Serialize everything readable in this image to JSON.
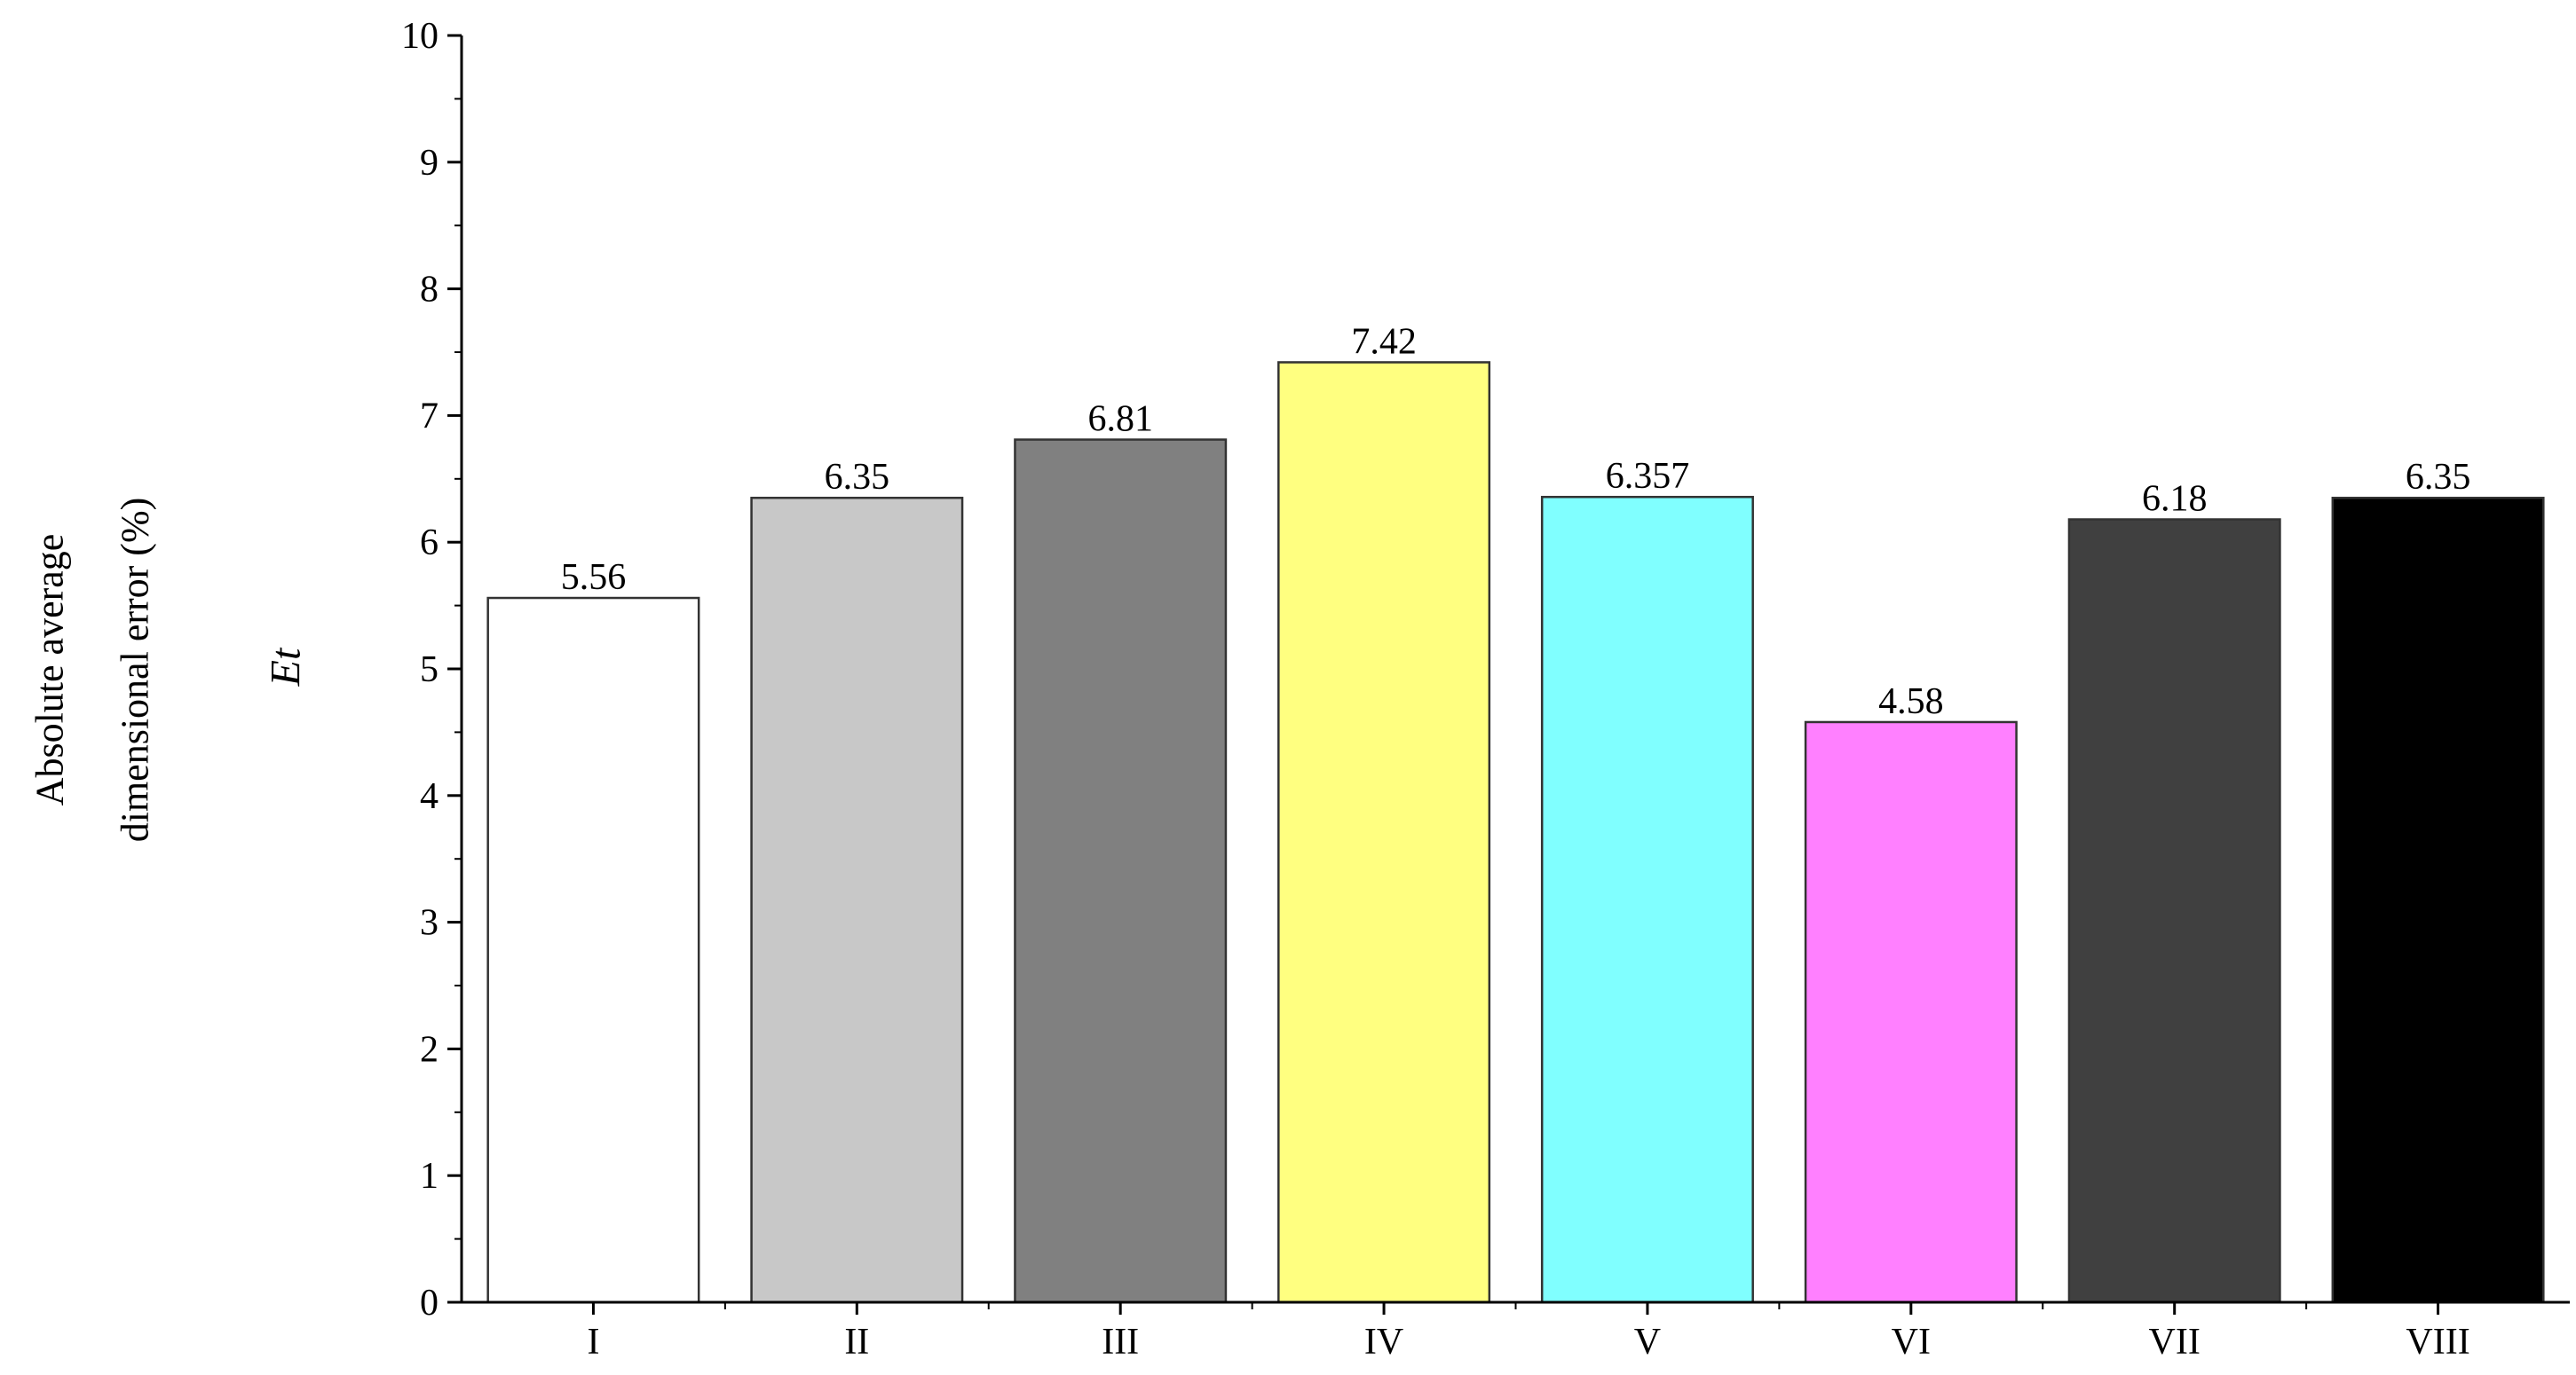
{
  "chart_data": {
    "type": "bar",
    "categories": [
      "I",
      "II",
      "III",
      "IV",
      "V",
      "VI",
      "VII",
      "VIII"
    ],
    "values": [
      5.56,
      6.35,
      6.81,
      7.42,
      6.357,
      4.58,
      6.18,
      6.35
    ],
    "value_labels": [
      "5.56",
      "6.35",
      "6.81",
      "7.42",
      "6.357",
      "4.58",
      "6.18",
      "6.35"
    ],
    "colors": [
      "#ffffff",
      "#c8c8c8",
      "#808080",
      "#ffff80",
      "#80ffff",
      "#ff80ff",
      "#404040",
      "#000000"
    ],
    "ylabel_line1": "Absolute average",
    "ylabel_line2": "dimensional error (%)",
    "ylabel_symbol": "Et",
    "ylim": [
      0,
      10
    ],
    "yticks": [
      0,
      1,
      2,
      3,
      4,
      5,
      6,
      7,
      8,
      9,
      10
    ],
    "grid": false,
    "legend": "none"
  }
}
